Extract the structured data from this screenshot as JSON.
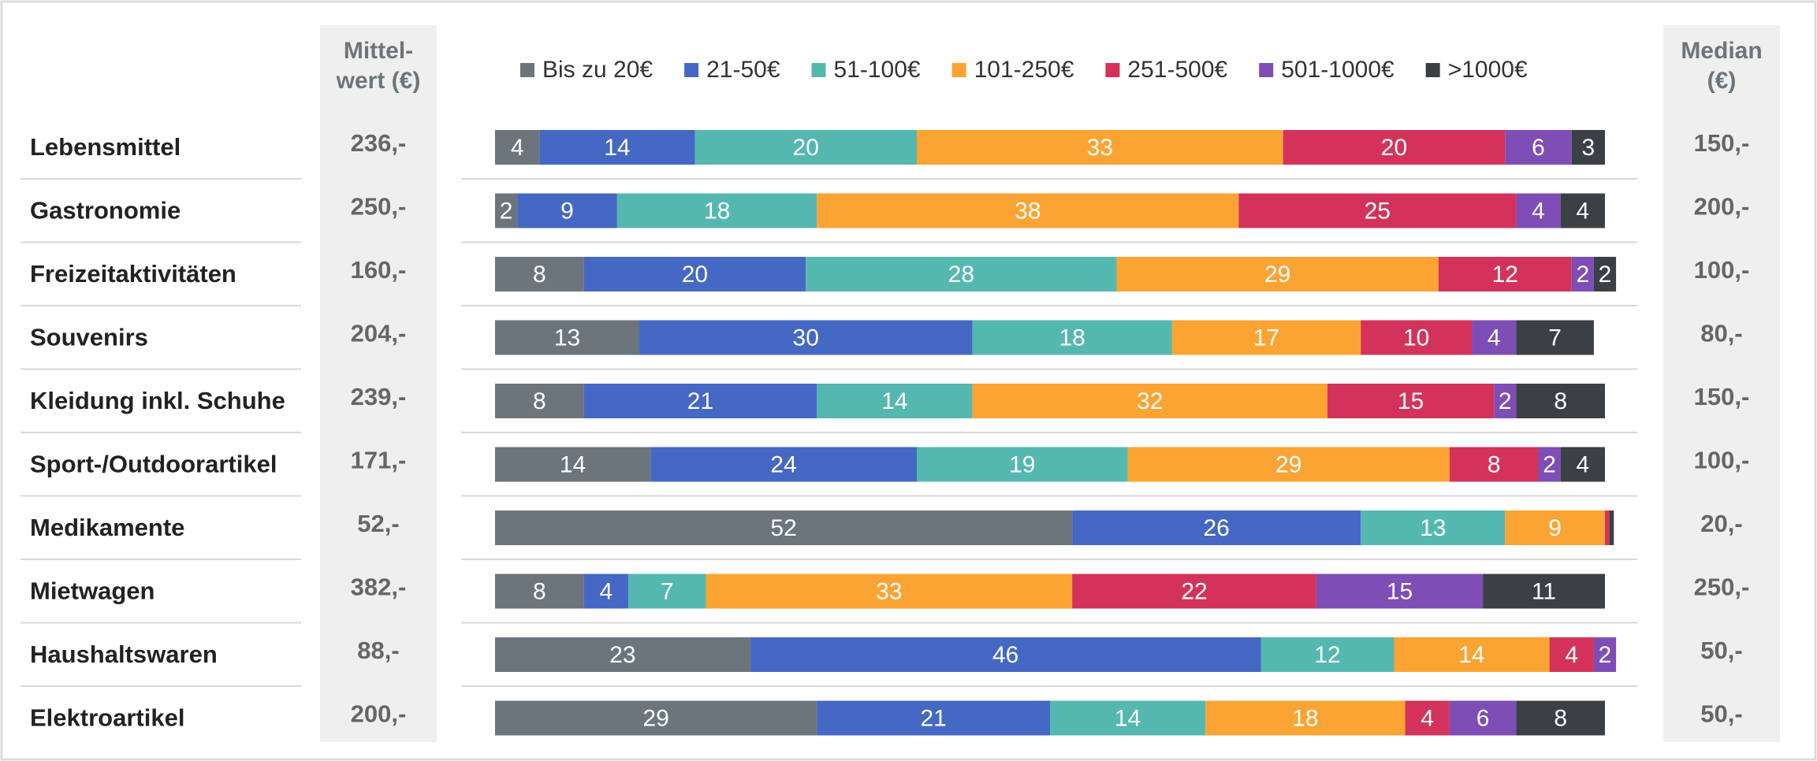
{
  "chart_data": {
    "type": "stacked-bar-horizontal",
    "categories": [
      "Lebensmittel",
      "Gastronomie",
      "Freizeitaktivitäten",
      "Souvenirs",
      "Kleidung inkl. Schuhe",
      "Sport-/Outdoorartikel",
      "Medikamente",
      "Mietwagen",
      "Haushaltswaren",
      "Elektroartikel"
    ],
    "xlim": [
      0,
      100
    ],
    "series": [
      {
        "name": "Bis zu 20€",
        "color": "#6c757b",
        "values": [
          4,
          2,
          8,
          13,
          8,
          14,
          52,
          8,
          23,
          29
        ]
      },
      {
        "name": "21-50€",
        "color": "#4468c3",
        "values": [
          14,
          9,
          20,
          30,
          21,
          24,
          26,
          4,
          46,
          21
        ]
      },
      {
        "name": "51-100€",
        "color": "#55b8b0",
        "values": [
          20,
          18,
          28,
          18,
          14,
          19,
          13,
          7,
          12,
          14
        ]
      },
      {
        "name": "101-250€",
        "color": "#fba433",
        "values": [
          33,
          38,
          29,
          17,
          32,
          29,
          9,
          33,
          14,
          18
        ]
      },
      {
        "name": "251-500€",
        "color": "#d3335b",
        "values": [
          20,
          25,
          12,
          10,
          15,
          8,
          0.4,
          22,
          4,
          4
        ]
      },
      {
        "name": "501-1000€",
        "color": "#7e4db5",
        "values": [
          6,
          4,
          2,
          4,
          2,
          2,
          0,
          15,
          2,
          6
        ]
      },
      {
        "name": ">1000€",
        "color": "#3b4045",
        "values": [
          3,
          4,
          2,
          7,
          8,
          4,
          0.4,
          11,
          0,
          8
        ]
      }
    ],
    "mean_header": [
      "Mittel-",
      "wert (€)"
    ],
    "mean": [
      "236,-",
      "250,-",
      "160,-",
      "204,-",
      "239,-",
      "171,-",
      "52,-",
      "382,-",
      "88,-",
      "200,-"
    ],
    "median_header": [
      "Median",
      "(€)"
    ],
    "median": [
      "150,-",
      "200,-",
      "100,-",
      "80,-",
      "150,-",
      "100,-",
      "20,-",
      "250,-",
      "50,-",
      "50,-"
    ]
  }
}
